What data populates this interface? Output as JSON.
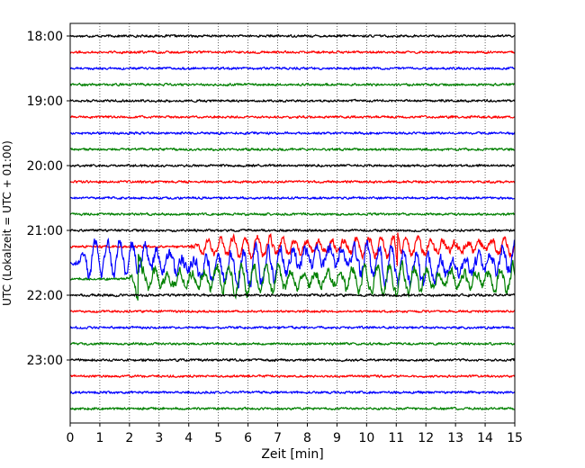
{
  "chart_data": {
    "type": "line",
    "title": "",
    "xlabel": "Zeit  [min]",
    "ylabel": "UTC (Lokalzeit = UTC + 01:00)",
    "xlim": [
      0,
      15
    ],
    "x_ticks": [
      "0",
      "1",
      "2",
      "3",
      "4",
      "5",
      "6",
      "7",
      "8",
      "9",
      "10",
      "11",
      "12",
      "13",
      "14",
      "15"
    ],
    "y_tick_labels": [
      "18:00",
      "19:00",
      "20:00",
      "21:00",
      "22:00",
      "23:00"
    ],
    "grid": "vertical dotted",
    "trace_colors": [
      "#000000",
      "#ff0000",
      "#0000ff",
      "#008000"
    ],
    "trace_interval_minutes": 15,
    "series": [
      {
        "start": "18:00",
        "activity": "noise",
        "amplitude": 1.0
      },
      {
        "start": "18:15",
        "activity": "noise",
        "amplitude": 1.0
      },
      {
        "start": "18:30",
        "activity": "noise",
        "amplitude": 1.0
      },
      {
        "start": "18:45",
        "activity": "noise",
        "amplitude": 1.0
      },
      {
        "start": "19:00",
        "activity": "noise",
        "amplitude": 1.0
      },
      {
        "start": "19:15",
        "activity": "noise",
        "amplitude": 1.0
      },
      {
        "start": "19:30",
        "activity": "noise",
        "amplitude": 1.0
      },
      {
        "start": "19:45",
        "activity": "noise",
        "amplitude": 1.0
      },
      {
        "start": "20:00",
        "activity": "noise",
        "amplitude": 1.0
      },
      {
        "start": "20:15",
        "activity": "noise",
        "amplitude": 1.0
      },
      {
        "start": "20:30",
        "activity": "noise",
        "amplitude": 1.0
      },
      {
        "start": "20:45",
        "activity": "noise",
        "amplitude": 1.0
      },
      {
        "start": "21:00",
        "activity": "noise",
        "amplitude": 1.0
      },
      {
        "start": "21:15",
        "activity": "event",
        "amplitude": 2.0,
        "onset_min": 3.9,
        "spike_min": 11.05
      },
      {
        "start": "21:30",
        "activity": "event",
        "amplitude": 4.0,
        "onset_min": 0.0,
        "spike_min": null
      },
      {
        "start": "21:45",
        "activity": "event",
        "amplitude": 3.2,
        "onset_min": 1.8,
        "spike_min": 2.3
      },
      {
        "start": "22:00",
        "activity": "noise",
        "amplitude": 1.1
      },
      {
        "start": "22:15",
        "activity": "noise",
        "amplitude": 1.0
      },
      {
        "start": "22:30",
        "activity": "noise",
        "amplitude": 1.0
      },
      {
        "start": "22:45",
        "activity": "noise",
        "amplitude": 1.0
      },
      {
        "start": "23:00",
        "activity": "noise",
        "amplitude": 1.0
      },
      {
        "start": "23:15",
        "activity": "noise",
        "amplitude": 1.0
      },
      {
        "start": "23:30",
        "activity": "noise",
        "amplitude": 1.0
      },
      {
        "start": "23:45",
        "activity": "noise",
        "amplitude": 1.0
      }
    ]
  }
}
